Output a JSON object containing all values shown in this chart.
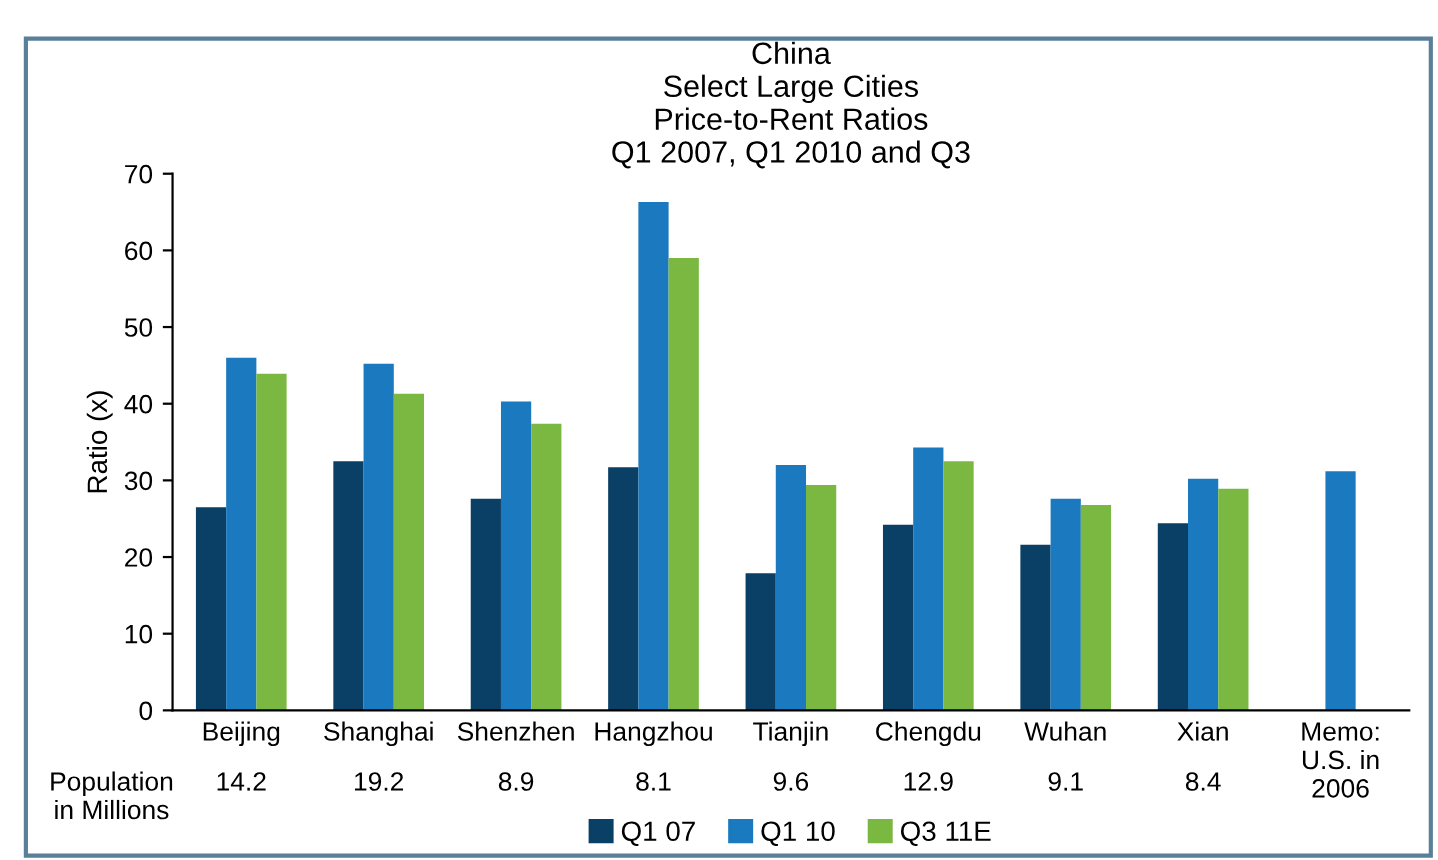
{
  "chart_data": {
    "type": "bar",
    "title": "China\nSelect Large Cities\nPrice-to-Rent Ratios\nQ1 2007, Q1 2010 and Q3",
    "ylabel": "Ratio (x)",
    "categories": [
      "Beijing",
      "Shanghai",
      "Shenzhen",
      "Hangzhou",
      "Tianjin",
      "Chengdu",
      "Wuhan",
      "Xian",
      "Memo:\nU.S. in\n2006"
    ],
    "series": [
      {
        "name": "Q1 07",
        "color": "#0a3f66",
        "values": [
          26.5,
          32.5,
          27.6,
          31.7,
          17.9,
          24.2,
          21.6,
          24.4,
          null
        ]
      },
      {
        "name": "Q1 10",
        "color": "#1b79bf",
        "values": [
          46.0,
          45.2,
          40.3,
          66.3,
          32.0,
          34.3,
          27.6,
          30.2,
          31.2
        ]
      },
      {
        "name": "Q3 11E",
        "color": "#7ab842",
        "values": [
          43.9,
          41.3,
          37.4,
          59.0,
          29.4,
          32.5,
          26.8,
          28.9,
          null
        ]
      }
    ],
    "ylim": [
      0,
      70
    ],
    "yticks": [
      0,
      10,
      20,
      30,
      40,
      50,
      60,
      70
    ],
    "grid": false,
    "legend": "bottom",
    "annotations": [
      "Population\nin Millions",
      "14.2",
      "19.2",
      "8.9",
      "8.1",
      "9.6",
      "12.9",
      "9.1",
      "8.4"
    ]
  }
}
